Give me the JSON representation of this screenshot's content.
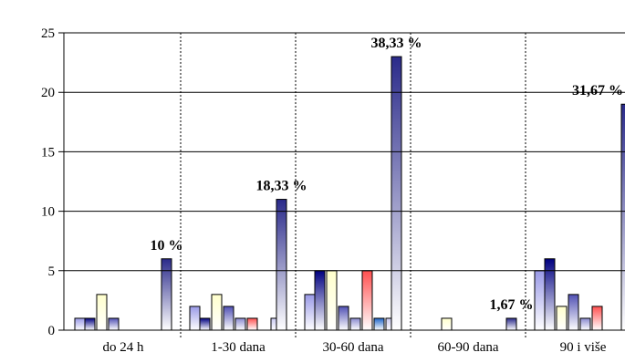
{
  "chart_data": {
    "type": "bar",
    "categories": [
      "do 24 h",
      "1-30 dana",
      "30-60 dana",
      "60-90 dana",
      "90 i više"
    ],
    "series": [
      {
        "values": [
          1,
          2,
          3,
          0,
          5
        ],
        "color": "#9999e6"
      },
      {
        "values": [
          1,
          1,
          5,
          0,
          6
        ],
        "color": "#000080"
      },
      {
        "values": [
          3,
          3,
          5,
          1,
          2
        ],
        "color": "#ffffcc"
      },
      {
        "values": [
          1,
          2,
          2,
          0,
          3
        ],
        "color": "#5050b4"
      },
      {
        "values": [
          0,
          1,
          1,
          0,
          1
        ],
        "color": "#8a8ad0"
      },
      {
        "values": [
          0,
          1,
          5,
          0,
          2
        ],
        "color": "#ff5050"
      },
      {
        "values": [
          0,
          0,
          1,
          0,
          0
        ],
        "color": "#1e64c8"
      },
      {
        "values": [
          0,
          1,
          1,
          0,
          0
        ],
        "color": "#c8c8f0"
      },
      {
        "values": [
          6,
          11,
          23,
          1,
          19
        ],
        "color": "#2a2a8a"
      }
    ],
    "percent_labels": [
      "10 %",
      "18,33 %",
      "38,33 %",
      "1,67 %",
      "31,67 %"
    ],
    "yticks": [
      0,
      5,
      10,
      15,
      20,
      25
    ],
    "ylim": [
      0,
      25
    ],
    "title": "",
    "xlabel": "",
    "ylabel": "",
    "grid": "vertical dashed separators between categories",
    "legend": "none"
  }
}
